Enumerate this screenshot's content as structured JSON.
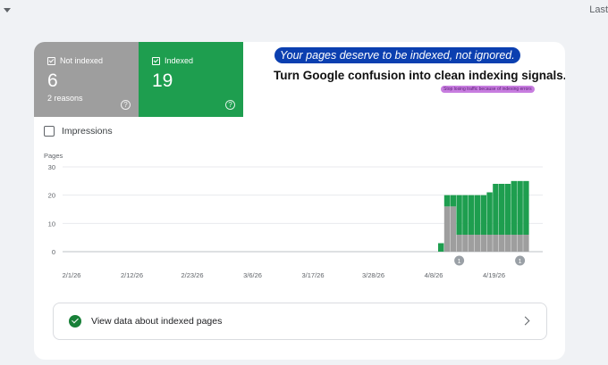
{
  "topbar": {
    "last_label": "Last"
  },
  "tiles": {
    "not_indexed": {
      "label": "Not indexed",
      "count": "6",
      "sub": "2 reasons"
    },
    "indexed": {
      "label": "Indexed",
      "count": "19"
    }
  },
  "promo": {
    "pill": "Your pages deserve to be indexed, not ignored.",
    "title": "Turn Google confusion into clean indexing signals.",
    "tag": "Stop losing traffic because of indexing errors"
  },
  "impressions": {
    "label": "Impressions"
  },
  "chart_data": {
    "type": "bar",
    "stacked": true,
    "ylabel": "Pages",
    "ylim": [
      0,
      30
    ],
    "yticks": [
      "30",
      "20",
      "10",
      "0"
    ],
    "xtick_labels": [
      "2/1/26",
      "2/12/26",
      "2/23/26",
      "3/6/26",
      "3/17/26",
      "3/28/26",
      "4/8/26",
      "4/19/26"
    ],
    "series": [
      {
        "color": "#9e9e9e",
        "values": [
          0,
          16,
          16,
          6,
          6,
          6,
          6,
          6,
          6,
          6,
          6,
          6,
          6,
          6,
          6
        ]
      },
      {
        "color": "#1e9e4f",
        "values": [
          3,
          4,
          4,
          14,
          14,
          14,
          14,
          14,
          15,
          18,
          18,
          18,
          19,
          19,
          19
        ]
      }
    ],
    "annotations": [
      "1",
      "1"
    ],
    "colors": {
      "grid": "#e8eaed",
      "annotation": "#9aa0a6"
    }
  },
  "view_row": {
    "label": "View data about indexed pages"
  }
}
